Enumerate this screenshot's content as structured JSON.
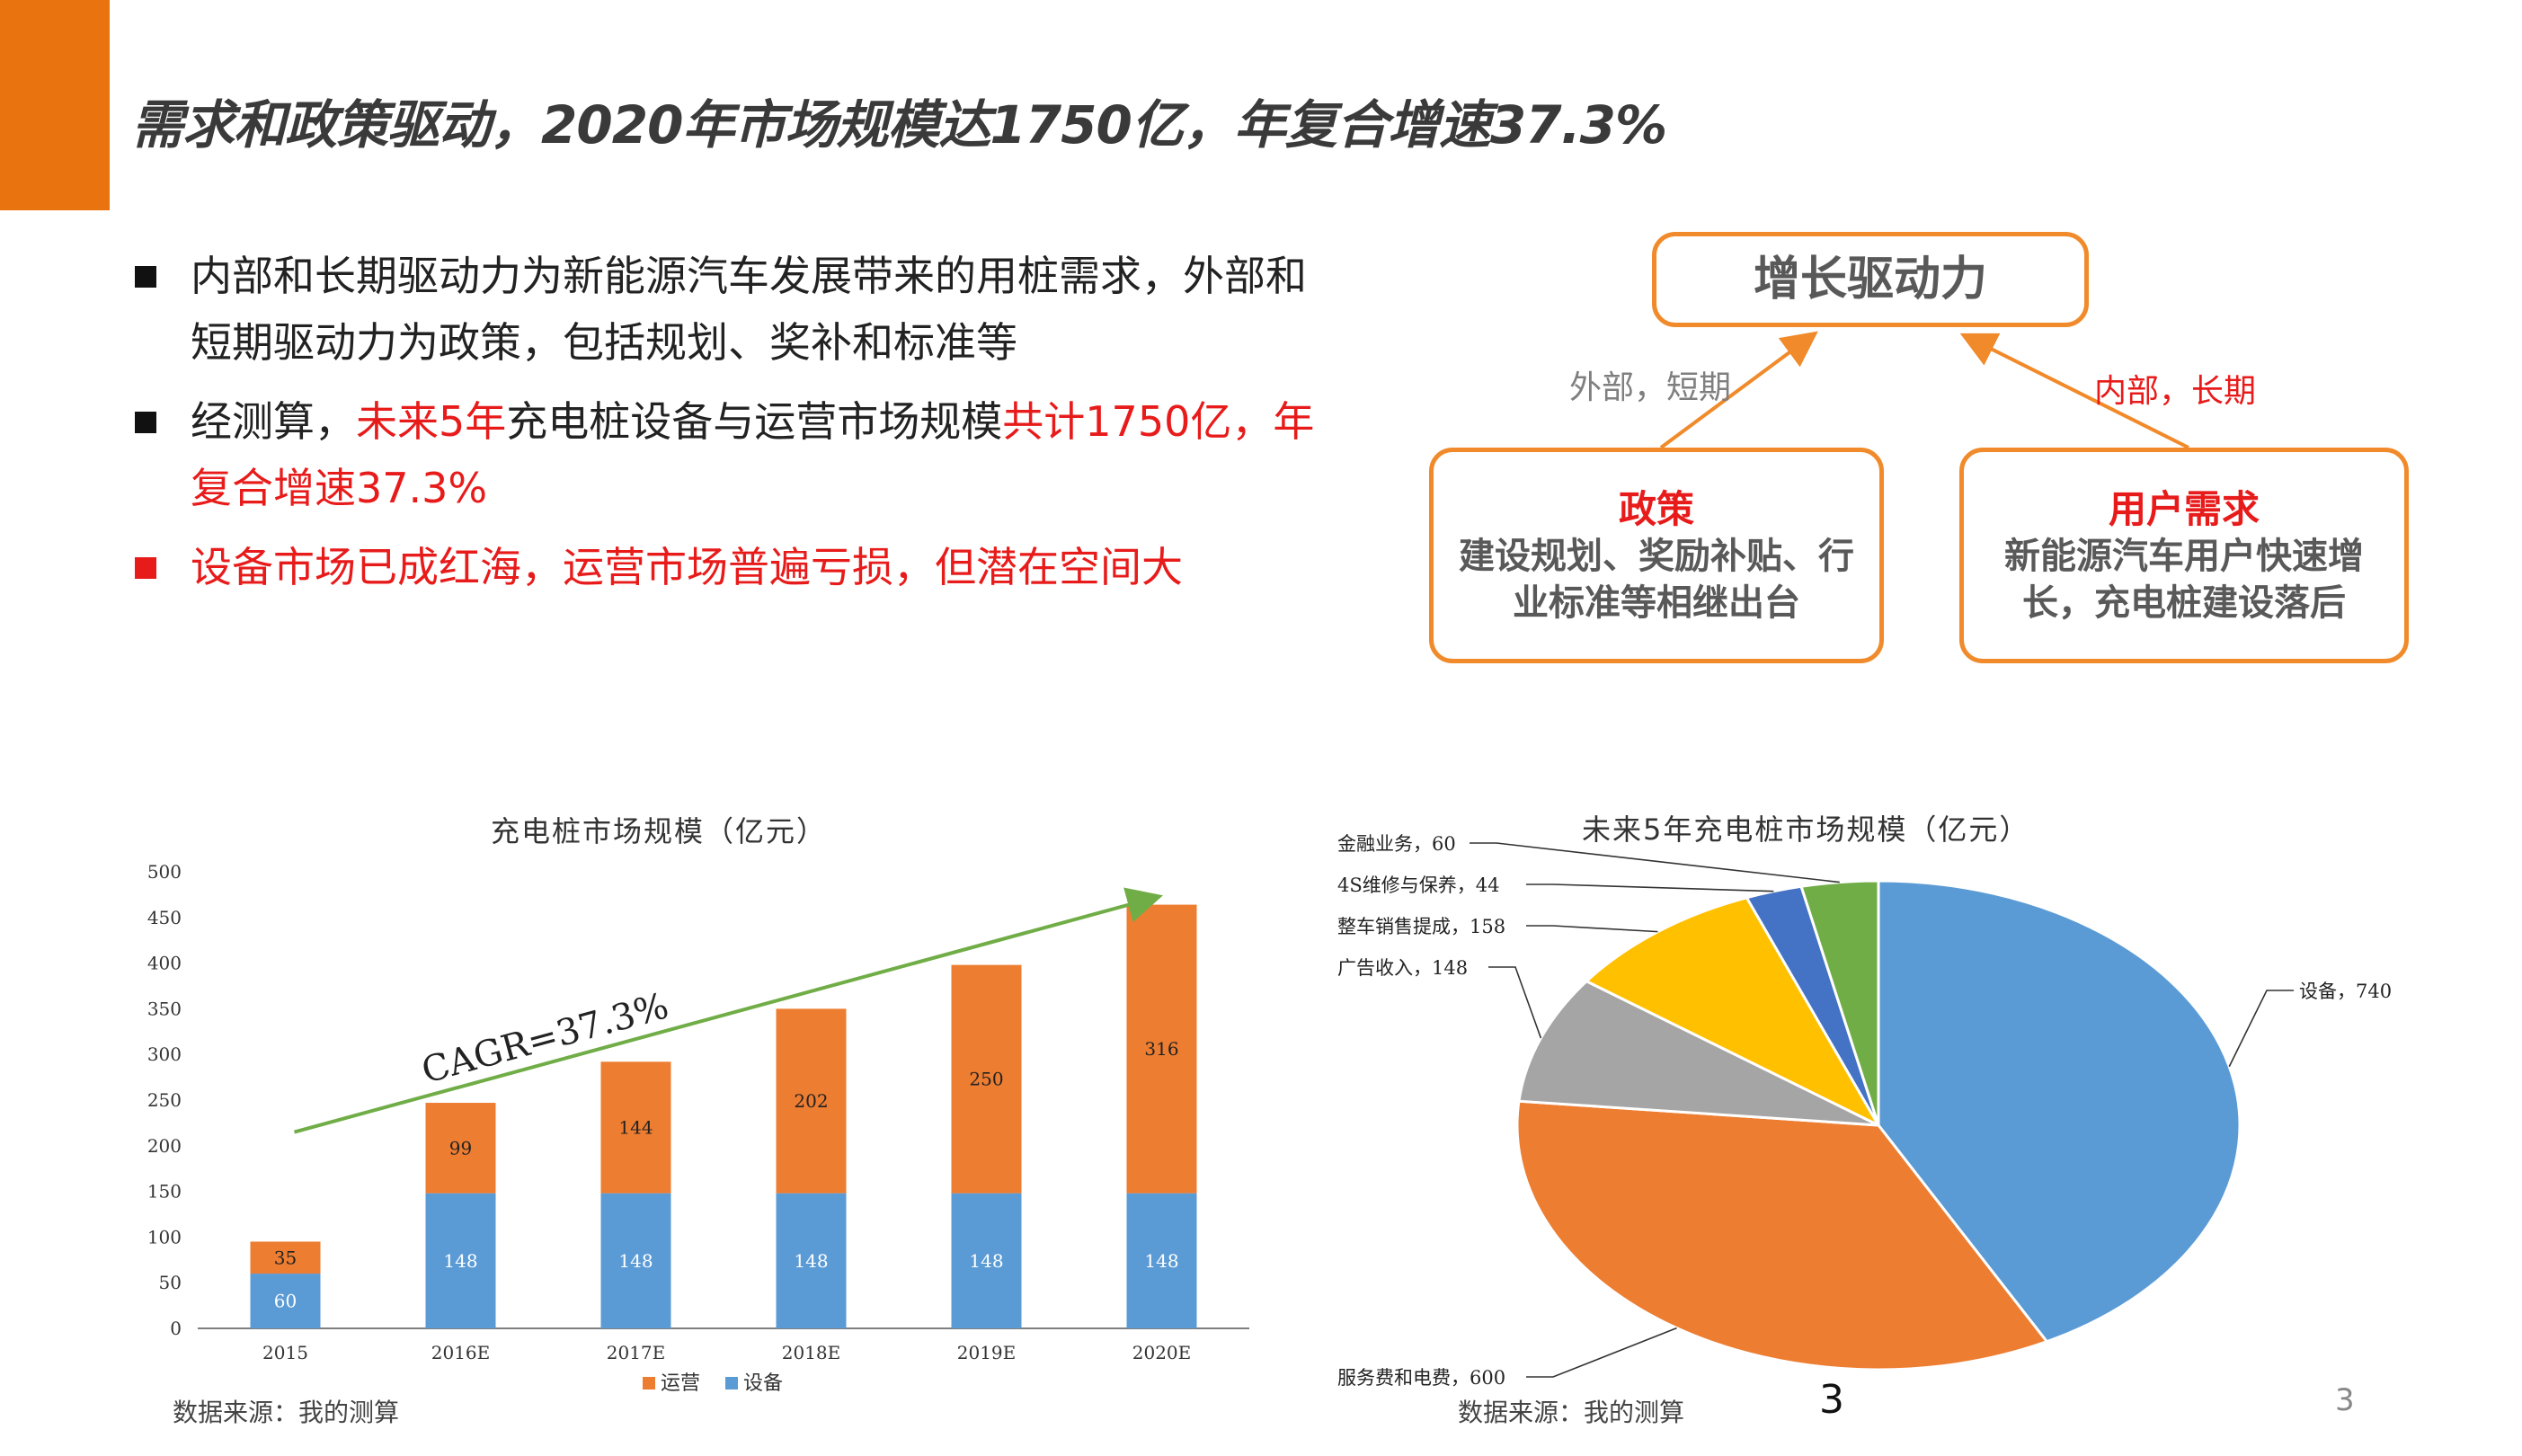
{
  "slide": {
    "title": "需求和政策驱动，2020年市场规模达1750亿，年复合增速37.3%",
    "page_number": "3",
    "page_number_small": "3"
  },
  "bullets": [
    {
      "parts": [
        {
          "text": "内部和长期驱动力为新能源汽车发展带来的用桩需求，外部和短期驱动力为政策，包括规划、奖补和标准等",
          "red": false
        }
      ]
    },
    {
      "parts": [
        {
          "text": "经测算，",
          "red": false
        },
        {
          "text": "未来5年",
          "red": true
        },
        {
          "text": "充电桩设备与运营市场规模",
          "red": false
        },
        {
          "text": "共计1750亿，年复合增速37.3%",
          "red": true
        }
      ]
    },
    {
      "parts": [
        {
          "text": "设备市场已成红海，运营市场普遍亏损，但潜在空间大",
          "red": true
        }
      ]
    }
  ],
  "diagram": {
    "top": "增长驱动力",
    "left_arrow_label": "外部，短期",
    "right_arrow_label": "内部，长期",
    "left_box": {
      "title": "政策",
      "body": "建设规划、奖励补贴、行业标准等相继出台"
    },
    "right_box": {
      "title": "用户需求",
      "body": "新能源汽车用户快速增长，充电桩建设落后"
    },
    "colors": {
      "border": "#f08a2a",
      "arrow": "#f08a2a",
      "highlight": "#e81b1b",
      "left_label": "#7f7f7f",
      "right_label": "#e81b1b"
    }
  },
  "chart_data": [
    {
      "type": "bar",
      "stacked": true,
      "title": "充电桩市场规模（亿元）",
      "categories": [
        "2015",
        "2016E",
        "2017E",
        "2018E",
        "2019E",
        "2020E"
      ],
      "series": [
        {
          "name": "设备",
          "values": [
            60,
            148,
            148,
            148,
            148,
            148
          ],
          "color": "#5b9bd5"
        },
        {
          "name": "运营",
          "values": [
            35,
            99,
            144,
            202,
            250,
            316
          ],
          "color": "#ed7d31"
        }
      ],
      "ylim": [
        0,
        500
      ],
      "yticks": [
        0,
        50,
        100,
        150,
        200,
        250,
        300,
        350,
        400,
        450,
        500
      ],
      "annotation": "CAGR=37.3%",
      "trend_color": "#70ad47",
      "legend": "bottom",
      "legend_order": [
        "运营",
        "设备"
      ],
      "source": "数据来源：我的测算"
    },
    {
      "type": "pie",
      "title": "未来5年充电桩市场规模（亿元）",
      "slices": [
        {
          "label": "设备",
          "value": 740,
          "color": "#5b9bd5",
          "display": "设备，740"
        },
        {
          "label": "服务费和电费",
          "value": 600,
          "color": "#ed7d31",
          "display": "服务费和电费，600"
        },
        {
          "label": "广告收入",
          "value": 148,
          "color": "#a5a5a5",
          "display": "广告收入，148"
        },
        {
          "label": "整车销售提成",
          "value": 158,
          "color": "#ffc000",
          "display": "整车销售提成，158"
        },
        {
          "label": "4S维修与保养",
          "value": 44,
          "color": "#4472c4",
          "display": "4S维修与保养，44"
        },
        {
          "label": "金融业务",
          "value": 60,
          "color": "#70ad47",
          "display": "金融业务，60"
        }
      ],
      "source": "数据来源：我的测算"
    }
  ]
}
